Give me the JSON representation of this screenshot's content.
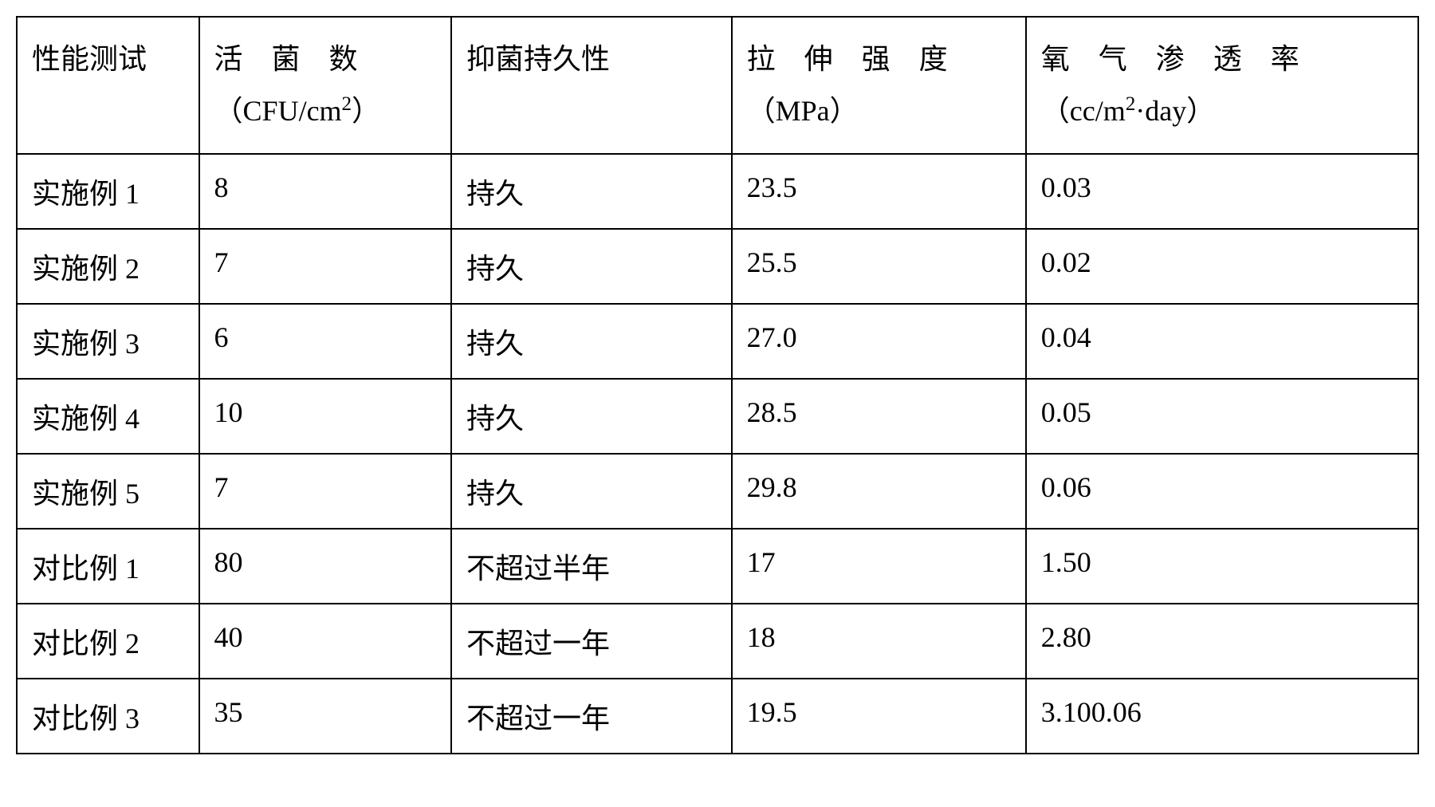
{
  "table": {
    "columns": [
      {
        "id": "col1",
        "label_line1": "性能测试",
        "label_line2": ""
      },
      {
        "id": "col2",
        "label_line1": "活菌数",
        "label_line2": "（CFU/cm²）"
      },
      {
        "id": "col3",
        "label_line1": "抑菌持久性",
        "label_line2": ""
      },
      {
        "id": "col4",
        "label_line1": "拉伸强度",
        "label_line2": "（MPa）"
      },
      {
        "id": "col5",
        "label_line1": "氧气渗透率",
        "label_line2": "（cc/m²·day）"
      }
    ],
    "header_html": {
      "col1": "性能测试",
      "col2_line1": "活　菌　数",
      "col2_line2_prefix": "（CFU/cm",
      "col2_line2_sup": "2",
      "col2_line2_suffix": "）",
      "col3": "抑菌持久性",
      "col4_line1": "拉　伸　强　度",
      "col4_line2": "（MPa）",
      "col5_line1": "氧　气　渗　透　率",
      "col5_line2_prefix": "（cc/m",
      "col5_line2_sup": "2",
      "col5_line2_suffix": "·day）"
    },
    "rows": [
      {
        "c1": "实施例 1",
        "c2": "8",
        "c3": "持久",
        "c4": "23.5",
        "c5": "0.03"
      },
      {
        "c1": "实施例 2",
        "c2": "7",
        "c3": "持久",
        "c4": "25.5",
        "c5": "0.02"
      },
      {
        "c1": "实施例 3",
        "c2": "6",
        "c3": "持久",
        "c4": "27.0",
        "c5": "0.04"
      },
      {
        "c1": "实施例 4",
        "c2": "10",
        "c3": "持久",
        "c4": "28.5",
        "c5": "0.05"
      },
      {
        "c1": "实施例 5",
        "c2": "7",
        "c3": "持久",
        "c4": "29.8",
        "c5": "0.06"
      },
      {
        "c1": "对比例 1",
        "c2": "80",
        "c3": "不超过半年",
        "c4": "17",
        "c5": "1.50"
      },
      {
        "c1": "对比例 2",
        "c2": "40",
        "c3": "不超过一年",
        "c4": "18",
        "c5": "2.80"
      },
      {
        "c1": "对比例 3",
        "c2": "35",
        "c3": "不超过一年",
        "c4": "19.5",
        "c5": "3.100.06"
      }
    ],
    "styling": {
      "border_color": "#000000",
      "border_width": 2,
      "background_color": "#ffffff",
      "text_color": "#000000",
      "font_size": 36,
      "font_family": "SimSun",
      "cell_padding": "20px 18px",
      "column_widths_pct": [
        13,
        18,
        20,
        21,
        28
      ]
    }
  }
}
